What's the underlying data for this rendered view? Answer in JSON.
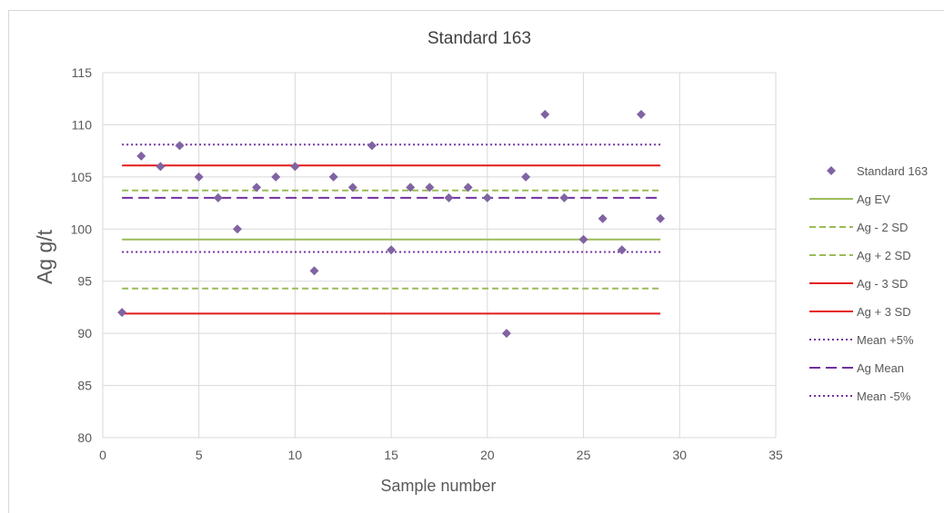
{
  "chart_data": {
    "type": "scatter",
    "title": "Standard 163",
    "xlabel": "Sample number",
    "ylabel": "Ag g/t",
    "xlim": [
      0,
      35
    ],
    "ylim": [
      80,
      115
    ],
    "x_ticks": [
      0,
      5,
      10,
      15,
      20,
      25,
      30,
      35
    ],
    "y_ticks": [
      80,
      85,
      90,
      95,
      100,
      105,
      110,
      115
    ],
    "grid": true,
    "legend_position": "right",
    "series": [
      {
        "name": "Standard 163",
        "kind": "points",
        "marker": "diamond",
        "color": "#8064a2",
        "x": [
          1,
          2,
          3,
          4,
          5,
          6,
          7,
          8,
          9,
          10,
          11,
          12,
          13,
          14,
          15,
          16,
          17,
          18,
          19,
          20,
          21,
          22,
          23,
          24,
          25,
          26,
          27,
          28,
          29
        ],
        "y": [
          92,
          107,
          106,
          108,
          105,
          103,
          100,
          104,
          105,
          106,
          96,
          105,
          104,
          108,
          98,
          104,
          104,
          103,
          104,
          103,
          90,
          105,
          111,
          103,
          99,
          101,
          98,
          111,
          101
        ]
      },
      {
        "name": "Ag EV",
        "kind": "line",
        "dash": "solid",
        "color": "#9bbb59",
        "x": [
          1,
          29
        ],
        "y": [
          99,
          99
        ]
      },
      {
        "name": "Ag - 2 SD",
        "kind": "line",
        "dash": "dashed",
        "color": "#9bbb59",
        "x": [
          1,
          29
        ],
        "y": [
          94.3,
          94.3
        ]
      },
      {
        "name": "Ag + 2 SD",
        "kind": "line",
        "dash": "dashed",
        "color": "#9bbb59",
        "x": [
          1,
          29
        ],
        "y": [
          103.7,
          103.7
        ]
      },
      {
        "name": "Ag - 3 SD",
        "kind": "line",
        "dash": "solid",
        "color": "#e41a1c",
        "x": [
          1,
          29
        ],
        "y": [
          91.9,
          91.9
        ]
      },
      {
        "name": "Ag + 3 SD",
        "kind": "line",
        "dash": "solid",
        "color": "#e41a1c",
        "x": [
          1,
          29
        ],
        "y": [
          106.1,
          106.1
        ]
      },
      {
        "name": "Mean +5%",
        "kind": "line",
        "dash": "dotted",
        "color": "#7030a0",
        "x": [
          1,
          29
        ],
        "y": [
          108.1,
          108.1
        ]
      },
      {
        "name": "Ag Mean",
        "kind": "line",
        "dash": "longdash",
        "color": "#7030a0",
        "x": [
          1,
          29
        ],
        "y": [
          103,
          103
        ]
      },
      {
        "name": "Mean -5%",
        "kind": "line",
        "dash": "dotted",
        "color": "#7030a0",
        "x": [
          1,
          29
        ],
        "y": [
          97.8,
          97.8
        ]
      }
    ]
  }
}
